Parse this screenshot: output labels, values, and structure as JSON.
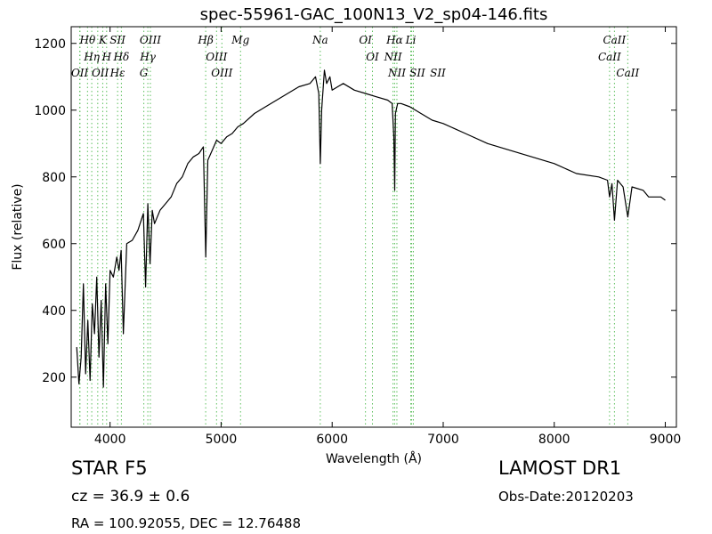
{
  "chart_data": {
    "type": "line",
    "title": "spec-55961-GAC_100N13_V2_sp04-146.fits",
    "xlabel": "Wavelength (Å)",
    "ylabel": "Flux (relative)",
    "xlim": [
      3650,
      9100
    ],
    "ylim": [
      50,
      1250
    ],
    "xticks": [
      4000,
      5000,
      6000,
      7000,
      8000,
      9000
    ],
    "yticks": [
      200,
      400,
      600,
      800,
      1000,
      1200
    ],
    "grid": false,
    "series": [
      {
        "x": [
          3700,
          3720,
          3740,
          3760,
          3780,
          3800,
          3820,
          3840,
          3860,
          3880,
          3900,
          3920,
          3940,
          3960,
          3980,
          4000,
          4030,
          4060,
          4080,
          4100,
          4120,
          4150,
          4200,
          4250,
          4300,
          4320,
          4340,
          4360,
          4380,
          4400,
          4450,
          4500,
          4550,
          4600,
          4650,
          4700,
          4750,
          4800,
          4840,
          4862,
          4880,
          4920,
          4960,
          5000,
          5050,
          5100,
          5150,
          5200,
          5300,
          5400,
          5500,
          5600,
          5700,
          5800,
          5850,
          5880,
          5893,
          5905,
          5930,
          5950,
          5980,
          6000,
          6050,
          6100,
          6200,
          6300,
          6400,
          6500,
          6540,
          6555,
          6563,
          6570,
          6590,
          6620,
          6700,
          6800,
          6900,
          7000,
          7200,
          7400,
          7600,
          7800,
          8000,
          8200,
          8400,
          8480,
          8498,
          8520,
          8542,
          8570,
          8620,
          8662,
          8700,
          8800,
          8850,
          8900,
          8960,
          9000
        ],
        "values": [
          290,
          180,
          260,
          480,
          210,
          370,
          190,
          420,
          330,
          500,
          260,
          430,
          170,
          480,
          300,
          520,
          500,
          560,
          520,
          580,
          330,
          600,
          610,
          640,
          690,
          470,
          720,
          540,
          700,
          660,
          700,
          720,
          740,
          780,
          800,
          840,
          860,
          870,
          890,
          560,
          850,
          880,
          910,
          900,
          920,
          930,
          950,
          960,
          990,
          1010,
          1030,
          1050,
          1070,
          1080,
          1100,
          1050,
          840,
          1000,
          1120,
          1080,
          1100,
          1060,
          1070,
          1080,
          1060,
          1050,
          1040,
          1030,
          1020,
          920,
          760,
          990,
          1020,
          1020,
          1010,
          990,
          970,
          960,
          930,
          900,
          880,
          860,
          840,
          810,
          800,
          790,
          740,
          780,
          670,
          790,
          770,
          680,
          770,
          760,
          740,
          740,
          740,
          730
        ]
      }
    ],
    "lines": [
      {
        "label": "Hθ",
        "x": 3797
      },
      {
        "label": "Hη",
        "x": 3835
      },
      {
        "label": "OII",
        "x": 3727
      },
      {
        "label": "OII",
        "x": 3729
      },
      {
        "label": "Hε",
        "x": 3889
      },
      {
        "label": "K",
        "x": 3934
      },
      {
        "label": "SII",
        "x": 4068
      },
      {
        "label": "H",
        "x": 3969
      },
      {
        "label": "Hδ",
        "x": 4102
      },
      {
        "label": "OIII",
        "x": 4363
      },
      {
        "label": "Hγ",
        "x": 4340
      },
      {
        "label": "G",
        "x": 4304
      },
      {
        "label": "Hβ",
        "x": 4861
      },
      {
        "label": "OIII",
        "x": 4959
      },
      {
        "label": "OIII",
        "x": 5007
      },
      {
        "label": "Mg",
        "x": 5175
      },
      {
        "label": "Na",
        "x": 5893
      },
      {
        "label": "OI",
        "x": 6300
      },
      {
        "label": "OI",
        "x": 6363
      },
      {
        "label": "Hα",
        "x": 6563
      },
      {
        "label": "NII",
        "x": 6548
      },
      {
        "label": "NII",
        "x": 6583
      },
      {
        "label": "SII",
        "x": 6716
      },
      {
        "label": "Li",
        "x": 6708
      },
      {
        "label": "SII",
        "x": 6731
      },
      {
        "label": "CaII",
        "x": 8542
      },
      {
        "label": "CaII",
        "x": 8498
      },
      {
        "label": "CaII",
        "x": 8662
      }
    ]
  },
  "object": "STAR   F5",
  "survey": "LAMOST DR1",
  "cz": "cz = 36.9 ± 0.6",
  "obs_date": "Obs-Date:20120203",
  "radec": "RA = 100.92055, DEC = 12.76488"
}
